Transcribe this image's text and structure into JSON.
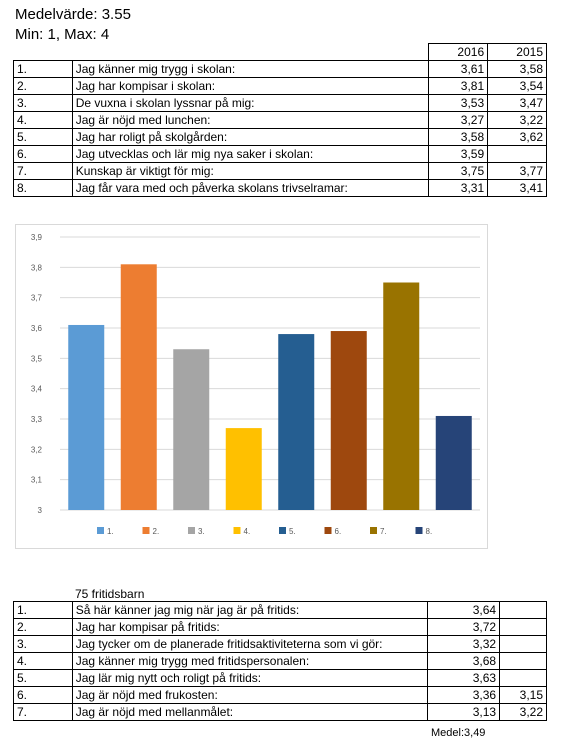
{
  "header": {
    "average": "Medelvärde: 3.55",
    "minmax": "Min: 1, Max: 4"
  },
  "table1": {
    "columns": [
      "2016",
      "2015"
    ],
    "rows": [
      {
        "num": "1.",
        "text": "Jag känner mig trygg i skolan:",
        "v2016": "3,61",
        "v2015": "3,58"
      },
      {
        "num": "2.",
        "text": "Jag har kompisar i skolan:",
        "v2016": "3,81",
        "v2015": "3,54"
      },
      {
        "num": "3.",
        "text": "De vuxna i skolan lyssnar på mig:",
        "v2016": "3,53",
        "v2015": "3,47"
      },
      {
        "num": "4.",
        "text": "Jag är nöjd med lunchen:",
        "v2016": "3,27",
        "v2015": "3,22"
      },
      {
        "num": "5.",
        "text": "Jag har roligt på skolgården:",
        "v2016": "3,58",
        "v2015": "3,62"
      },
      {
        "num": "6.",
        "text": "Jag utvecklas och lär mig nya saker i skolan:",
        "v2016": "3,59",
        "v2015": ""
      },
      {
        "num": "7.",
        "text": "Kunskap är viktigt för mig:",
        "v2016": "3,75",
        "v2015": "3,77"
      },
      {
        "num": "8.",
        "text": "Jag får vara med och påverka skolans trivselramar:",
        "v2016": "3,31",
        "v2015": "3,41"
      }
    ]
  },
  "chart_data": {
    "type": "bar",
    "categories": [
      "1.",
      "2.",
      "3.",
      "4.",
      "5.",
      "6.",
      "7.",
      "8."
    ],
    "values": [
      3.61,
      3.81,
      3.53,
      3.27,
      3.58,
      3.59,
      3.75,
      3.31
    ],
    "colors": [
      "#5b9bd5",
      "#ed7d31",
      "#a5a5a5",
      "#ffc000",
      "#255e91",
      "#9e480e",
      "#997300",
      "#264478"
    ],
    "ylim": [
      3,
      3.9
    ],
    "yticks": [
      "3",
      "3,1",
      "3,2",
      "3,3",
      "3,4",
      "3,5",
      "3,6",
      "3,7",
      "3,8",
      "3,9"
    ],
    "grid": true,
    "legend": "bottom",
    "title": "",
    "xlabel": "",
    "ylabel": ""
  },
  "section2": {
    "subtitle": "75 fritidsbarn",
    "rows": [
      {
        "num": "1.",
        "text": "Så här känner jag mig när jag är på fritids:",
        "v1": "3,64",
        "v2": ""
      },
      {
        "num": "2.",
        "text": "Jag har kompisar på fritids:",
        "v1": "3,72",
        "v2": ""
      },
      {
        "num": "3.",
        "text": "Jag tycker om de planerade fritidsaktiviteterna som vi gör:",
        "v1": "3,32",
        "v2": ""
      },
      {
        "num": "4.",
        "text": "Jag känner mig trygg med fritidspersonalen:",
        "v1": "3,68",
        "v2": ""
      },
      {
        "num": "5.",
        "text": "Jag lär mig nytt och roligt på fritids:",
        "v1": "3,63",
        "v2": ""
      },
      {
        "num": "6.",
        "text": "Jag är nöjd med frukosten:",
        "v1": "3,36",
        "v2": "3,15"
      },
      {
        "num": "7.",
        "text": "Jag är nöjd med mellanmålet:",
        "v1": "3,13",
        "v2": "3,22"
      }
    ],
    "footer": "Medel:3,49"
  }
}
